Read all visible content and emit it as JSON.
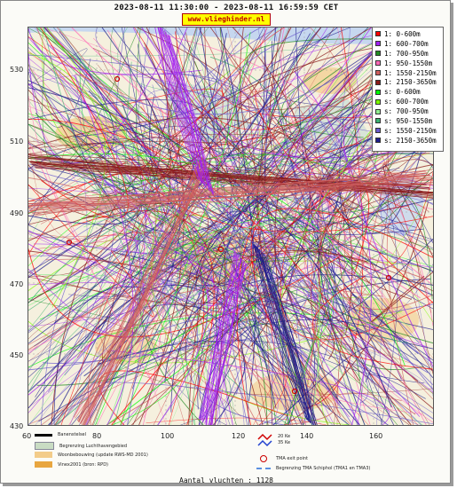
{
  "header": {
    "title": "2023-08-11 11:30:00 - 2023-08-11 16:59:59 CET",
    "site": "www.vlieghinder.nl"
  },
  "axes": {
    "y_labels": [
      "530",
      "510",
      "490",
      "470",
      "450",
      "430"
    ],
    "x_labels": [
      "60",
      "80",
      "100",
      "120",
      "140",
      "160"
    ]
  },
  "legend": [
    {
      "label": "1: 0-600m",
      "color": "#ff0000"
    },
    {
      "label": "1: 600-700m",
      "color": "#a020f0"
    },
    {
      "label": "1: 700-950m",
      "color": "#228b22"
    },
    {
      "label": "1: 950-1550m",
      "color": "#ff69b4"
    },
    {
      "label": "1: 1550-2150m",
      "color": "#cd5c5c"
    },
    {
      "label": "1: 2150-3650m",
      "color": "#8b1a1a"
    },
    {
      "label": "s: 0-600m",
      "color": "#00ff00"
    },
    {
      "label": "s: 600-700m",
      "color": "#7cfc00"
    },
    {
      "label": "s: 700-950m",
      "color": "#90ee90"
    },
    {
      "label": "s: 950-1550m",
      "color": "#3cb371"
    },
    {
      "label": "s: 1550-2150m",
      "color": "#6a5acd"
    },
    {
      "label": "s: 2150-3650m",
      "color": "#1e1e8c"
    }
  ],
  "map_legend": {
    "runway": "Banenstelsel",
    "airport_limit": "Begrenzing Luchthavengebied",
    "housing": "Woonbebouwing (update RWS-MD 2001)",
    "vinex": "Vinex2001 (bron: RPD)",
    "kv20": "20 Ke",
    "kv35": "35 Ke",
    "tma_exit": "TMA exit point",
    "tma_limit": "Begrenzing TMA Schiphol  (TMA1 en TMA3)"
  },
  "footer": {
    "count_text": "Aantal vluchten : 1128"
  }
}
